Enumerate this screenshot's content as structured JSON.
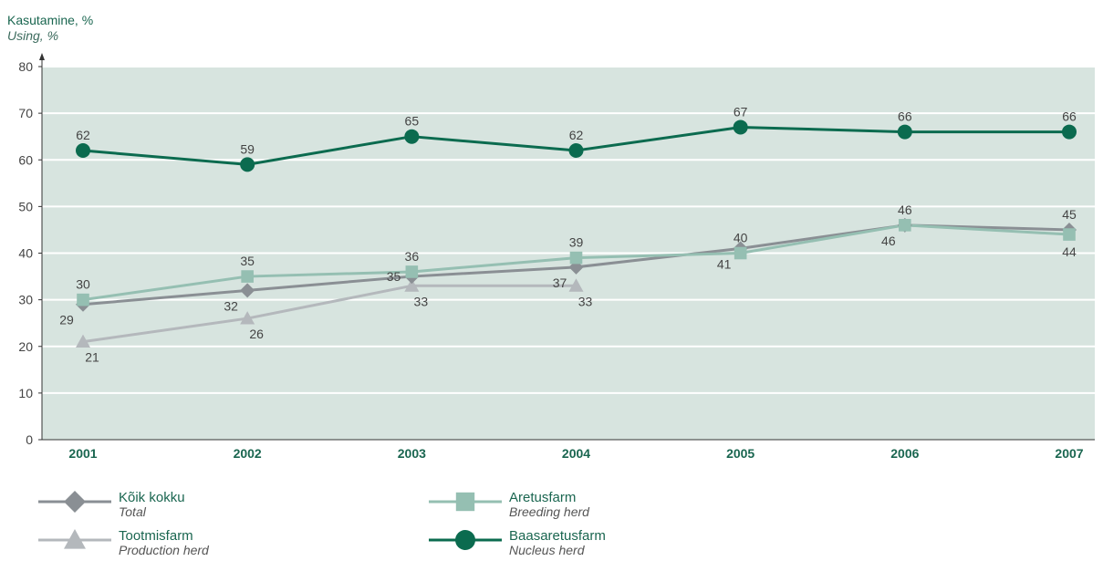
{
  "chart_data": {
    "type": "line",
    "ylabel": "Kasutamine, %",
    "ylabel_sub": "Using, %",
    "xlabel": "",
    "categories": [
      "2001",
      "2002",
      "2003",
      "2004",
      "2005",
      "2006",
      "2007"
    ],
    "ylim": [
      0,
      80
    ],
    "yticks": [
      0,
      10,
      20,
      30,
      40,
      50,
      60,
      70,
      80
    ],
    "grid": true,
    "legend_position": "bottom",
    "series": [
      {
        "name": "Kõik kokku",
        "name_sub": "Total",
        "marker": "diamond",
        "color": "#8a8f94",
        "values": [
          29,
          32,
          35,
          37,
          41,
          46,
          45
        ],
        "label_pos": [
          "below",
          "below",
          "left-above",
          "below",
          "below",
          "below",
          "above"
        ]
      },
      {
        "name": "Tootmisfarm",
        "name_sub": "Production herd",
        "marker": "triangle",
        "color": "#b4b8bc",
        "values": [
          21,
          26,
          33,
          33,
          null,
          null,
          null
        ],
        "label_pos": [
          "below",
          "below",
          "below",
          "below",
          "",
          "",
          ""
        ]
      },
      {
        "name": "Aretusfarm",
        "name_sub": "Breeding herd",
        "marker": "square",
        "color": "#95bfb2",
        "values": [
          30,
          35,
          36,
          39,
          40,
          46,
          44
        ],
        "label_pos": [
          "above",
          "above",
          "above",
          "above",
          "above",
          "above",
          "below"
        ]
      },
      {
        "name": "Baasaretusfarm",
        "name_sub": "Nucleus herd",
        "marker": "circle",
        "color": "#0b6b4f",
        "values": [
          62,
          59,
          65,
          62,
          67,
          66,
          66
        ],
        "label_pos": [
          "above",
          "above",
          "above",
          "above",
          "above",
          "above",
          "above"
        ]
      }
    ]
  }
}
